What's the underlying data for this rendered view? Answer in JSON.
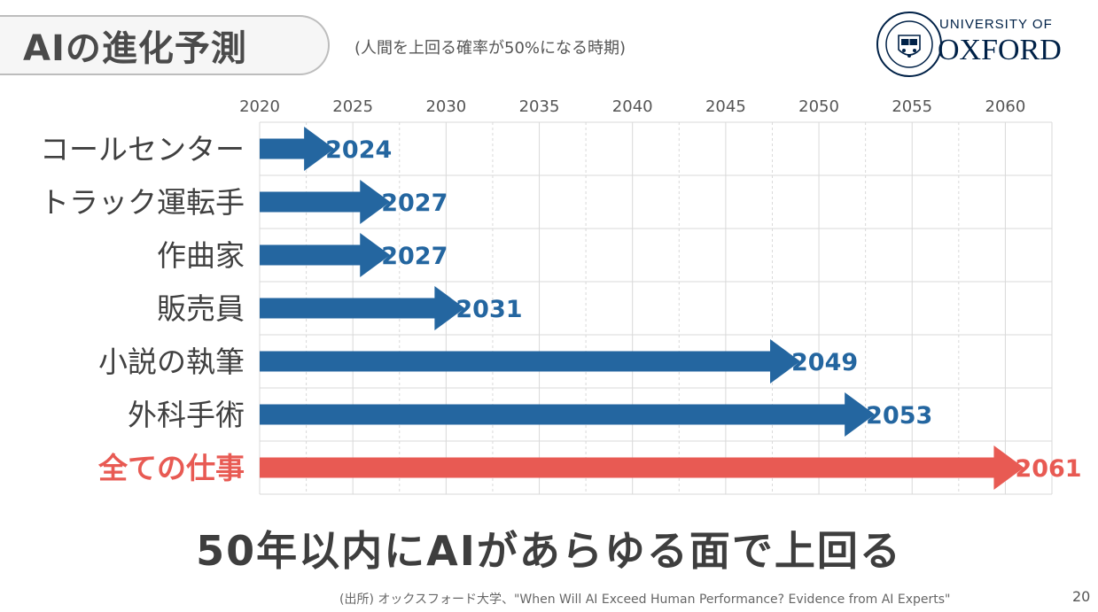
{
  "slide": {
    "title": "AIの進化予測",
    "subtitle": "(人間を上回る確率が50%になる時期)",
    "logo": {
      "line1": "UNIVERSITY OF",
      "line2": "OXFORD",
      "seal_text": "UNIVERSITY OF OXFORD",
      "icon": "oxford-seal-icon"
    },
    "headline": "50年以内にAIがあらゆる面で上回る",
    "source": "(出所) オックスフォード大学、\"When Will AI Exceed Human Performance? Evidence from AI Experts\"",
    "page_number": "20"
  },
  "colors": {
    "bar": "#2466a0",
    "highlight": "#e85a53",
    "grid": "#d9d9d9",
    "label": "#404040"
  },
  "chart_data": {
    "type": "bar",
    "orientation": "horizontal",
    "bar_style": "arrow",
    "axis_position": "top",
    "grid": true,
    "xlim": [
      2020,
      2062.5
    ],
    "xticks": [
      2020,
      2025,
      2030,
      2035,
      2040,
      2045,
      2050,
      2055,
      2060
    ],
    "baseline": 2020,
    "categories": [
      "コールセンター",
      "トラック運転手",
      "作曲家",
      "販売員",
      "小説の執筆",
      "外科手術",
      "全ての仕事"
    ],
    "values": [
      2024,
      2027,
      2027,
      2031,
      2049,
      2053,
      2061
    ],
    "value_labels": [
      "2024",
      "2027",
      "2027",
      "2031",
      "2049",
      "2053",
      "2061"
    ],
    "highlight_index": 6
  }
}
